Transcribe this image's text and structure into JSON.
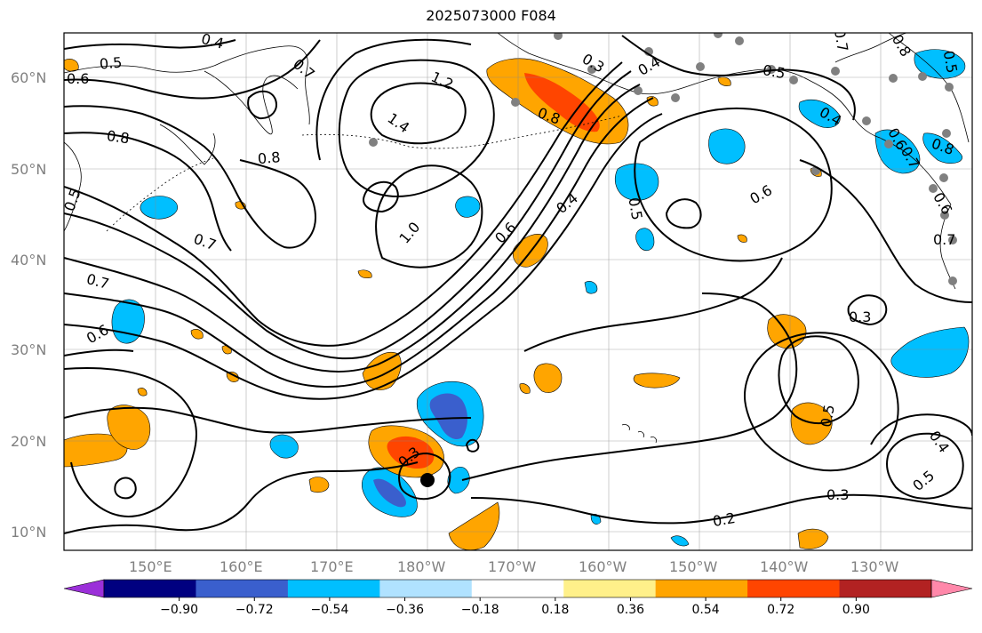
{
  "title": "2025073000 F084",
  "lat_labels": [
    "60°N",
    "50°N",
    "40°N",
    "30°N",
    "20°N",
    "10°N"
  ],
  "lon_labels": [
    "150°E",
    "160°E",
    "170°E",
    "180°W",
    "170°W",
    "160°W",
    "150°W",
    "140°W",
    "130°W"
  ],
  "contour_labels": [
    "0.4",
    "0.5",
    "0.6",
    "0.7",
    "0.8",
    "1.2",
    "1.4",
    "0.8",
    "0.3",
    "0.4",
    "0.5",
    "0.8",
    "1.0",
    "0.6",
    "0.4",
    "0.5",
    "0.6",
    "0.7",
    "0.7",
    "0.6",
    "0.3",
    "0.3",
    "0.5",
    "0.5",
    "0.4",
    "0.5",
    "0.3",
    "0.2",
    "0.8",
    "0.5",
    "0.7",
    "0.6",
    "0.7",
    "0.4",
    "0.6",
    "0.8",
    "0.7"
  ],
  "colorbar": {
    "ticks": [
      "−0.90",
      "−0.72",
      "−0.54",
      "−0.36",
      "−0.18",
      "0.18",
      "0.36",
      "0.54",
      "0.72",
      "0.90"
    ],
    "colors": [
      "#9b30d9",
      "#000080",
      "#3a5fcd",
      "#00bfff",
      "#b0e2ff",
      "#ffffff",
      "#fff08a",
      "#ffa500",
      "#ff4500",
      "#b22222",
      "#ff88aa"
    ]
  },
  "map_colors": {
    "orange": "#ffa500",
    "red": "#ff4500",
    "light_blue": "#00bfff",
    "blue": "#3a5fcd",
    "station_marker": "#808080",
    "storm_marker": "#000000"
  }
}
